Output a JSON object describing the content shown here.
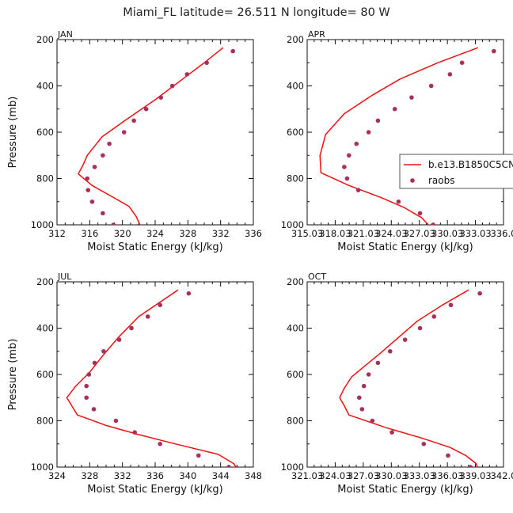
{
  "title": "Miami_FL  latitude= 26.511 N longitude= 80 W",
  "legend": {
    "model_label": "b.e13.B1850C5CN",
    "obs_label": "raobs"
  },
  "colors": {
    "model_line": "#ee1111",
    "obs_marker": "#a8305e"
  },
  "chart_data": [
    {
      "type": "line",
      "panel": "JAN",
      "xlabel": "Moist Static Energy (kJ/kg)",
      "ylabel": "Pressure (mb)",
      "xlim": [
        312,
        336
      ],
      "ylim": [
        1000,
        200
      ],
      "xticks": [
        312,
        316,
        320,
        324,
        328,
        332,
        336
      ],
      "xtick_labels": [
        "312",
        "316",
        "320",
        "324",
        "328",
        "332",
        "336"
      ],
      "yticks": [
        200,
        400,
        600,
        800,
        1000
      ],
      "series": [
        {
          "points": [
            [
              332.3,
              235
            ],
            [
              330,
              300
            ],
            [
              327,
              380
            ],
            [
              324,
              460
            ],
            [
              320.5,
              545
            ],
            [
              317.5,
              620
            ],
            [
              315.7,
              700
            ],
            [
              315.2,
              740
            ],
            [
              314.6,
              780
            ],
            [
              316.3,
              830
            ],
            [
              318.8,
              880
            ],
            [
              320.8,
              920
            ],
            [
              321.7,
              965
            ],
            [
              322.2,
              1005
            ]
          ]
        },
        {
          "points": [
            [
              333.5,
              250
            ],
            [
              330.3,
              300
            ],
            [
              327.9,
              350
            ],
            [
              326.1,
              400
            ],
            [
              324.7,
              450
            ],
            [
              322.9,
              500
            ],
            [
              321.4,
              550
            ],
            [
              320.2,
              600
            ],
            [
              318.4,
              650
            ],
            [
              317.6,
              700
            ],
            [
              316.6,
              750
            ],
            [
              315.7,
              800
            ],
            [
              315.8,
              850
            ],
            [
              316.3,
              900
            ],
            [
              317.6,
              950
            ],
            [
              318.9,
              1000
            ]
          ]
        }
      ]
    },
    {
      "type": "line",
      "panel": "APR",
      "xlabel": "Moist Static Energy (kJ/kg)",
      "ylabel": "",
      "xlim": [
        315.03,
        336.03
      ],
      "ylim": [
        1000,
        200
      ],
      "xticks": [
        315.03,
        318.03,
        321.03,
        324.03,
        327.03,
        330.03,
        333.03,
        336.03
      ],
      "xtick_labels": [
        "315.03",
        "318.03",
        "321.03",
        "324.03",
        "327.03",
        "330.03",
        "333.03",
        "336.0"
      ],
      "series": [
        {
          "points": [
            [
              333.3,
              235
            ],
            [
              329,
              300
            ],
            [
              325,
              370
            ],
            [
              322,
              440
            ],
            [
              319,
              520
            ],
            [
              317,
              610
            ],
            [
              316.4,
              700
            ],
            [
              316.5,
              775
            ],
            [
              319.5,
              830
            ],
            [
              322.8,
              880
            ],
            [
              325.4,
              925
            ],
            [
              327.3,
              970
            ],
            [
              328.1,
              1005
            ]
          ]
        },
        {
          "points": [
            [
              335.0,
              250
            ],
            [
              331.6,
              300
            ],
            [
              330.3,
              350
            ],
            [
              328.3,
              400
            ],
            [
              326.2,
              450
            ],
            [
              324.4,
              500
            ],
            [
              322.6,
              550
            ],
            [
              321.6,
              600
            ],
            [
              320.3,
              650
            ],
            [
              319.5,
              700
            ],
            [
              319.0,
              750
            ],
            [
              319.3,
              800
            ],
            [
              320.5,
              850
            ],
            [
              324.8,
              900
            ],
            [
              327.1,
              950
            ],
            [
              328.5,
              1000
            ]
          ]
        }
      ]
    },
    {
      "type": "line",
      "panel": "JUL",
      "xlabel": "Moist Static Energy (kJ/kg)",
      "ylabel": "Pressure (mb)",
      "xlim": [
        324,
        348
      ],
      "ylim": [
        1000,
        200
      ],
      "xticks": [
        324,
        328,
        332,
        336,
        340,
        344,
        348
      ],
      "xtick_labels": [
        "324",
        "328",
        "332",
        "336",
        "340",
        "344",
        "348"
      ],
      "series": [
        {
          "points": [
            [
              338.8,
              235
            ],
            [
              336.5,
              290
            ],
            [
              334,
              350
            ],
            [
              331.5,
              440
            ],
            [
              329.8,
              510
            ],
            [
              328,
              590
            ],
            [
              326.3,
              650
            ],
            [
              325.2,
              700
            ],
            [
              325.8,
              735
            ],
            [
              326.5,
              775
            ],
            [
              330,
              820
            ],
            [
              334,
              860
            ],
            [
              338.5,
              900
            ],
            [
              343.7,
              945
            ],
            [
              345.6,
              985
            ],
            [
              346,
              1005
            ]
          ]
        },
        {
          "points": [
            [
              340.1,
              250
            ],
            [
              336.6,
              300
            ],
            [
              335.1,
              350
            ],
            [
              333.1,
              400
            ],
            [
              331.6,
              450
            ],
            [
              329.7,
              500
            ],
            [
              328.6,
              550
            ],
            [
              327.9,
              600
            ],
            [
              327.6,
              650
            ],
            [
              327.6,
              700
            ],
            [
              328.5,
              750
            ],
            [
              331.2,
              800
            ],
            [
              333.5,
              850
            ],
            [
              336.6,
              900
            ],
            [
              341.3,
              950
            ],
            [
              345.0,
              1000
            ]
          ]
        }
      ]
    },
    {
      "type": "line",
      "panel": "OCT",
      "xlabel": "Moist Static Energy (kJ/kg)",
      "ylabel": "",
      "xlim": [
        321.03,
        342.03
      ],
      "ylim": [
        1000,
        200
      ],
      "xticks": [
        321.03,
        324.03,
        327.03,
        330.03,
        333.03,
        336.03,
        339.03,
        342.03
      ],
      "xtick_labels": [
        "321.03",
        "324.03",
        "327.03",
        "330.03",
        "333.03",
        "336.03",
        "339.03",
        "342.0"
      ],
      "series": [
        {
          "points": [
            [
              338.3,
              235
            ],
            [
              335.5,
              300
            ],
            [
              332.8,
              370
            ],
            [
              330.8,
              440
            ],
            [
              328.8,
              510
            ],
            [
              327,
              570
            ],
            [
              325.8,
              610
            ],
            [
              325,
              660
            ],
            [
              324.5,
              700
            ],
            [
              325,
              735
            ],
            [
              325.5,
              775
            ],
            [
              329.5,
              830
            ],
            [
              333.3,
              875
            ],
            [
              336.3,
              915
            ],
            [
              338,
              950
            ],
            [
              339.1,
              985
            ],
            [
              339.3,
              1005
            ]
          ]
        },
        {
          "points": [
            [
              339.5,
              250
            ],
            [
              336.4,
              300
            ],
            [
              334.6,
              350
            ],
            [
              333.1,
              400
            ],
            [
              331.5,
              450
            ],
            [
              329.9,
              500
            ],
            [
              328.6,
              550
            ],
            [
              327.6,
              600
            ],
            [
              327.1,
              650
            ],
            [
              326.6,
              700
            ],
            [
              326.9,
              750
            ],
            [
              328.0,
              800
            ],
            [
              330.1,
              850
            ],
            [
              333.5,
              900
            ],
            [
              336.1,
              950
            ],
            [
              338.5,
              1000
            ]
          ]
        }
      ]
    }
  ]
}
